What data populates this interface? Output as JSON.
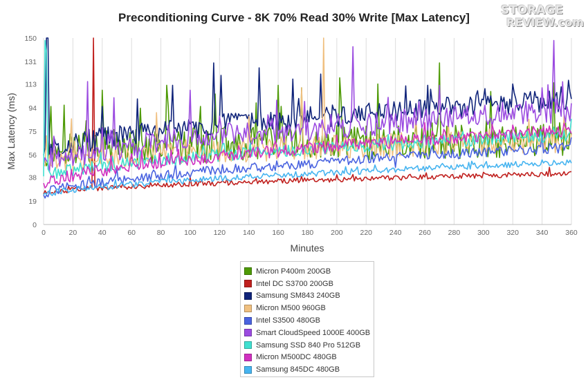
{
  "logo": {
    "line1": "STORAGE",
    "line2": "REVIEW.com"
  },
  "chart_data": {
    "type": "line",
    "title": "Preconditioning Curve - 8K 70% Read 30% Write [Max Latency]",
    "xlabel": "Minutes",
    "ylabel": "Max Latency (ms)",
    "xlim": [
      0,
      360
    ],
    "ylim": [
      0,
      150
    ],
    "x_ticks": [
      "0",
      "20",
      "40",
      "60",
      "80",
      "100",
      "120",
      "140",
      "160",
      "180",
      "200",
      "220",
      "240",
      "260",
      "280",
      "300",
      "320",
      "340",
      "360"
    ],
    "y_ticks": [
      "0",
      "19",
      "38",
      "56",
      "75",
      "94",
      "113",
      "131",
      "150"
    ],
    "grid": "vertical",
    "legend_position": "bottom",
    "series": [
      {
        "name": "Micron P400m 200GB",
        "color": "#4e9a06",
        "start": 60,
        "end": 68,
        "noise": 14,
        "spikes": [
          [
            5,
            95
          ],
          [
            14,
            96
          ],
          [
            40,
            108
          ],
          [
            84,
            112
          ],
          [
            117,
            105
          ],
          [
            160,
            112
          ],
          [
            176,
            110
          ],
          [
            202,
            118
          ],
          [
            228,
            113
          ],
          [
            270,
            130
          ],
          [
            305,
            107
          ],
          [
            348,
            114
          ]
        ]
      },
      {
        "name": "Intel DC S3700 200GB",
        "color": "#c0201e",
        "start": 25,
        "end": 41,
        "noise": 2,
        "spikes": [
          [
            34,
            150
          ],
          [
            100,
            38
          ],
          [
            200,
            40
          ],
          [
            300,
            42
          ],
          [
            345,
            46
          ]
        ]
      },
      {
        "name": "Samsung SM843 240GB",
        "color": "#10247a",
        "start": 58,
        "end": 100,
        "noise": 9,
        "spikes": [
          [
            2,
            150
          ],
          [
            3,
            150
          ],
          [
            40,
            95
          ],
          [
            64,
            101
          ],
          [
            88,
            112
          ],
          [
            116,
            130
          ],
          [
            121,
            120
          ],
          [
            147,
            126
          ],
          [
            170,
            117
          ],
          [
            189,
            121
          ],
          [
            262,
            112
          ],
          [
            320,
            113
          ],
          [
            358,
            116
          ]
        ]
      },
      {
        "name": "Micron M500 960GB",
        "color": "#f0c080",
        "start": 50,
        "end": 68,
        "noise": 10,
        "spikes": [
          [
            19,
            85
          ],
          [
            77,
            90
          ],
          [
            140,
            87
          ],
          [
            176,
            110
          ],
          [
            191,
            150
          ]
        ]
      },
      {
        "name": "Intel S3500 480GB",
        "color": "#4a63e0",
        "start": 24,
        "end": 62,
        "noise": 4,
        "spikes": [
          [
            145,
            48
          ],
          [
            240,
            46
          ],
          [
            300,
            60
          ],
          [
            340,
            72
          ],
          [
            360,
            70
          ]
        ]
      },
      {
        "name": "Smart CloudSpeed 1000E 400GB",
        "color": "#9b4be0",
        "start": 48,
        "end": 92,
        "noise": 10,
        "spikes": [
          [
            30,
            115
          ],
          [
            48,
            102
          ],
          [
            100,
            108
          ],
          [
            159,
            100
          ],
          [
            178,
            99
          ],
          [
            211,
            143
          ],
          [
            270,
            112
          ],
          [
            340,
            110
          ],
          [
            348,
            148
          ]
        ]
      },
      {
        "name": "Samsung SSD 840 Pro 512GB",
        "color": "#40e0d0",
        "start": 38,
        "end": 72,
        "noise": 5,
        "spikes": [
          [
            1,
            148
          ],
          [
            2,
            138
          ],
          [
            150,
            60
          ],
          [
            260,
            72
          ],
          [
            360,
            85
          ]
        ]
      },
      {
        "name": "Micron M500DC 480GB",
        "color": "#d030c0",
        "start": 32,
        "end": 76,
        "noise": 5,
        "spikes": [
          [
            60,
            57
          ],
          [
            140,
            60
          ],
          [
            200,
            72
          ],
          [
            260,
            82
          ],
          [
            320,
            80
          ]
        ]
      },
      {
        "name": "Samsung 845DC 480GB",
        "color": "#46b4f0",
        "start": 23,
        "end": 50,
        "noise": 2.5,
        "spikes": [
          [
            160,
            40
          ],
          [
            240,
            42
          ],
          [
            290,
            50
          ],
          [
            340,
            52
          ]
        ]
      }
    ]
  }
}
